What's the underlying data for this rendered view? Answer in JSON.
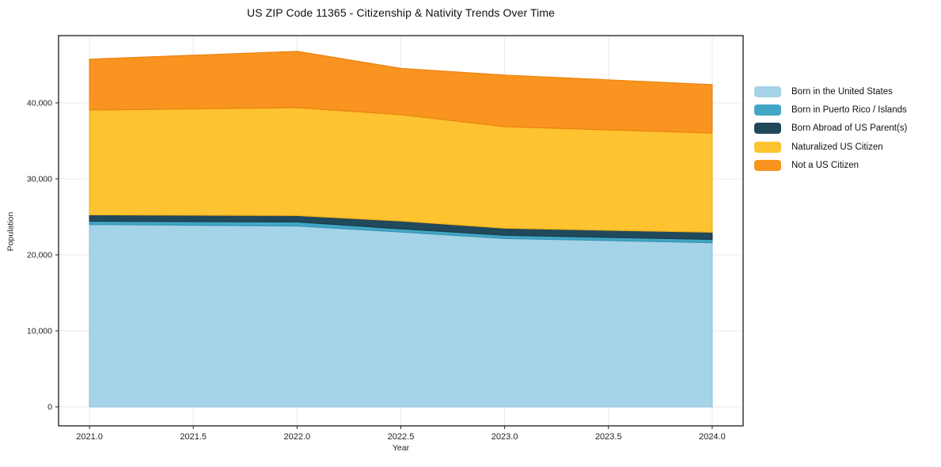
{
  "chart_data": {
    "type": "area",
    "stacked": true,
    "title": "US ZIP Code 11365 - Citizenship & Nativity Trends Over Time",
    "xlabel": "Year",
    "ylabel": "Population",
    "x": [
      2021,
      2022,
      2022.5,
      2023,
      2024
    ],
    "series": [
      {
        "name": "Born in the United States",
        "color": "#a5d3e7",
        "edge": "#8fc5dd",
        "values": [
          24000,
          23800,
          23000,
          22150,
          21600
        ]
      },
      {
        "name": "Born in Puerto Rico / Islands",
        "color": "#42a6c5",
        "edge": "#3695b3",
        "values": [
          430,
          530,
          420,
          420,
          430
        ]
      },
      {
        "name": "Born Abroad of US Parent(s)",
        "color": "#20495b",
        "edge": "#1a3d4c",
        "values": [
          840,
          840,
          1040,
          940,
          950
        ]
      },
      {
        "name": "Naturalized US Citizen",
        "color": "#fdc330",
        "edge": "#f0af1b",
        "values": [
          13790,
          14200,
          13980,
          13360,
          13050
        ]
      },
      {
        "name": "Not a US Citizen",
        "color": "#f8941f",
        "edge": "#ec8310",
        "values": [
          6690,
          7420,
          6100,
          6790,
          6370
        ]
      }
    ],
    "xticks": [
      2021.0,
      2021.5,
      2022.0,
      2022.5,
      2023.0,
      2023.5,
      2024.0
    ],
    "yticks": [
      0,
      10000,
      20000,
      30000,
      40000
    ],
    "xlim": [
      2020.851,
      2024.149
    ],
    "ylim": [
      -2500,
      48850
    ],
    "grid": true,
    "grid_color": "#e7e7e7",
    "spine_color": "#1a1a1a",
    "legend_position": "right-outside"
  }
}
